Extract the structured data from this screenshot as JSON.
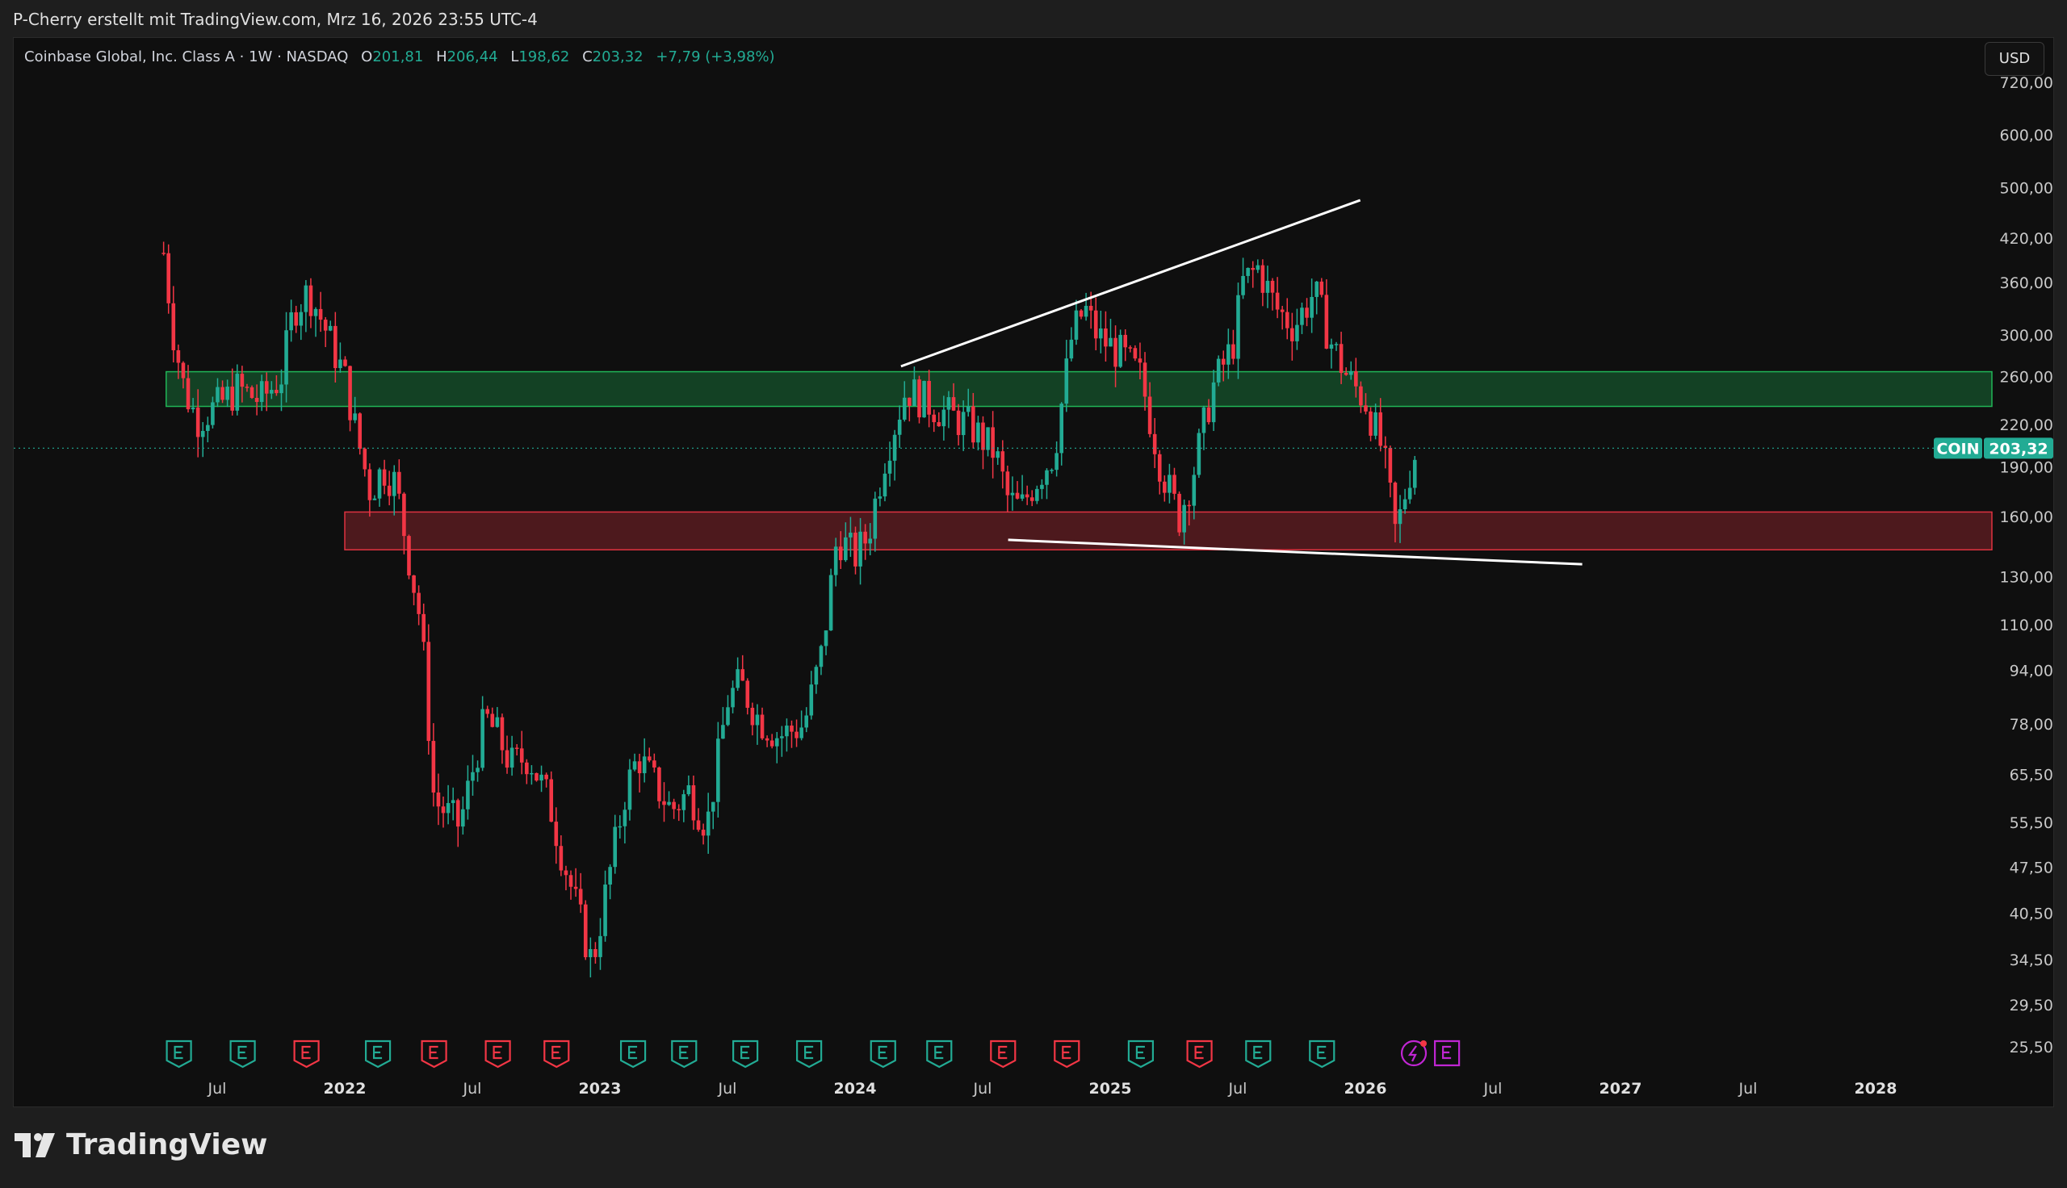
{
  "caption": "P-Cherry erstellt mit TradingView.com, Mrz 16, 2026 23:55 UTC-4",
  "symbol": {
    "title": "Coinbase Global, Inc. Class A · 1W · NASDAQ",
    "open_label": "O",
    "open": "201,81",
    "high_label": "H",
    "high": "206,44",
    "low_label": "L",
    "low": "198,62",
    "close_label": "C",
    "close": "203,32",
    "change": "+7,79 (+3,98%)",
    "ticker": "COIN",
    "last_price": "203,32"
  },
  "currency": "USD",
  "brand": "TradingView",
  "colors": {
    "up": "#22ab94",
    "down": "#f23645",
    "background": "#0f0f0f",
    "zone_green": "#1b5e20",
    "zone_red": "#5c0f14",
    "trendline": "#ffffff"
  },
  "chart_data": {
    "type": "candlestick",
    "scale": "log",
    "ylim": [
      25.5,
      720
    ],
    "y_ticks": [
      {
        "v": 720,
        "label": "720,00"
      },
      {
        "v": 600,
        "label": "600,00"
      },
      {
        "v": 500,
        "label": "500,00"
      },
      {
        "v": 420,
        "label": "420,00"
      },
      {
        "v": 360,
        "label": "360,00"
      },
      {
        "v": 300,
        "label": "300,00"
      },
      {
        "v": 260,
        "label": "260,00"
      },
      {
        "v": 220,
        "label": "220,00"
      },
      {
        "v": 190,
        "label": "190,00"
      },
      {
        "v": 160,
        "label": "160,00"
      },
      {
        "v": 130,
        "label": "130,00"
      },
      {
        "v": 110,
        "label": "110,00"
      },
      {
        "v": 94,
        "label": "94,00"
      },
      {
        "v": 78,
        "label": "78,00"
      },
      {
        "v": 65.5,
        "label": "65,50"
      },
      {
        "v": 55.5,
        "label": "55,50"
      },
      {
        "v": 47.5,
        "label": "47,50"
      },
      {
        "v": 40.5,
        "label": "40,50"
      },
      {
        "v": 34.5,
        "label": "34,50"
      },
      {
        "v": 29.5,
        "label": "29,50"
      },
      {
        "v": 25.5,
        "label": "25,50"
      }
    ],
    "x_ticks": [
      {
        "t": 2021.5,
        "label": "Jul",
        "year": false
      },
      {
        "t": 2022.0,
        "label": "2022",
        "year": true
      },
      {
        "t": 2022.5,
        "label": "Jul",
        "year": false
      },
      {
        "t": 2023.0,
        "label": "2023",
        "year": true
      },
      {
        "t": 2023.5,
        "label": "Jul",
        "year": false
      },
      {
        "t": 2024.0,
        "label": "2024",
        "year": true
      },
      {
        "t": 2024.5,
        "label": "Jul",
        "year": false
      },
      {
        "t": 2025.0,
        "label": "2025",
        "year": true
      },
      {
        "t": 2025.5,
        "label": "Jul",
        "year": false
      },
      {
        "t": 2026.0,
        "label": "2026",
        "year": true
      },
      {
        "t": 2026.5,
        "label": "Jul",
        "year": false
      },
      {
        "t": 2027.0,
        "label": "2027",
        "year": true
      },
      {
        "t": 2027.5,
        "label": "Jul",
        "year": false
      },
      {
        "t": 2028.0,
        "label": "2028",
        "year": true
      }
    ],
    "price_path": [
      [
        2021.29,
        400
      ],
      [
        2021.33,
        300
      ],
      [
        2021.37,
        250
      ],
      [
        2021.42,
        225
      ],
      [
        2021.5,
        235
      ],
      [
        2021.58,
        250
      ],
      [
        2021.67,
        240
      ],
      [
        2021.75,
        260
      ],
      [
        2021.8,
        330
      ],
      [
        2021.86,
        350
      ],
      [
        2021.92,
        310
      ],
      [
        2022.0,
        260
      ],
      [
        2022.05,
        210
      ],
      [
        2022.1,
        175
      ],
      [
        2022.15,
        190
      ],
      [
        2022.2,
        180
      ],
      [
        2022.25,
        140
      ],
      [
        2022.3,
        110
      ],
      [
        2022.35,
        60
      ],
      [
        2022.45,
        55
      ],
      [
        2022.55,
        80
      ],
      [
        2022.6,
        75
      ],
      [
        2022.65,
        68
      ],
      [
        2022.72,
        70
      ],
      [
        2022.8,
        60
      ],
      [
        2022.85,
        50
      ],
      [
        2022.92,
        40
      ],
      [
        2022.97,
        34
      ],
      [
        2023.03,
        45
      ],
      [
        2023.1,
        62
      ],
      [
        2023.15,
        70
      ],
      [
        2023.2,
        65
      ],
      [
        2023.28,
        58
      ],
      [
        2023.35,
        62
      ],
      [
        2023.42,
        55
      ],
      [
        2023.5,
        85
      ],
      [
        2023.55,
        90
      ],
      [
        2023.62,
        80
      ],
      [
        2023.7,
        75
      ],
      [
        2023.8,
        78
      ],
      [
        2023.87,
        100
      ],
      [
        2023.93,
        150
      ],
      [
        2024.0,
        140
      ],
      [
        2024.05,
        150
      ],
      [
        2024.12,
        200
      ],
      [
        2024.2,
        250
      ],
      [
        2024.27,
        240
      ],
      [
        2024.35,
        230
      ],
      [
        2024.45,
        220
      ],
      [
        2024.55,
        200
      ],
      [
        2024.6,
        170
      ],
      [
        2024.65,
        165
      ],
      [
        2024.7,
        180
      ],
      [
        2024.78,
        200
      ],
      [
        2024.85,
        300
      ],
      [
        2024.9,
        330
      ],
      [
        2024.95,
        300
      ],
      [
        2025.05,
        280
      ],
      [
        2025.12,
        260
      ],
      [
        2025.2,
        190
      ],
      [
        2025.27,
        160
      ],
      [
        2025.33,
        190
      ],
      [
        2025.4,
        250
      ],
      [
        2025.48,
        290
      ],
      [
        2025.52,
        360
      ],
      [
        2025.58,
        380
      ],
      [
        2025.65,
        330
      ],
      [
        2025.72,
        310
      ],
      [
        2025.8,
        350
      ],
      [
        2025.87,
        290
      ],
      [
        2025.93,
        260
      ],
      [
        2026.0,
        240
      ],
      [
        2026.07,
        200
      ],
      [
        2026.12,
        150
      ],
      [
        2026.17,
        185
      ],
      [
        2026.2,
        203.32
      ]
    ],
    "zones": [
      {
        "name": "support-resistance-green",
        "t0": 2021.3,
        "t1": 2028.5,
        "low": 235,
        "high": 265,
        "color": "#22c55e"
      },
      {
        "name": "demand-zone-red",
        "t0": 2022.0,
        "t1": 2028.5,
        "low": 143,
        "high": 163,
        "color": "#f23645"
      }
    ],
    "trendlines": [
      {
        "name": "upper-trendline",
        "t0": 2024.18,
        "p0": 270,
        "t1": 2025.98,
        "p1": 480
      },
      {
        "name": "lower-trendline",
        "t0": 2024.6,
        "p0": 148,
        "t1": 2026.85,
        "p1": 136
      }
    ],
    "last_price": 203.32,
    "earnings_markers": [
      {
        "t": 2021.35,
        "type": "up"
      },
      {
        "t": 2021.6,
        "type": "up"
      },
      {
        "t": 2021.85,
        "type": "down"
      },
      {
        "t": 2022.13,
        "type": "up"
      },
      {
        "t": 2022.35,
        "type": "down"
      },
      {
        "t": 2022.6,
        "type": "down"
      },
      {
        "t": 2022.83,
        "type": "down"
      },
      {
        "t": 2023.13,
        "type": "up"
      },
      {
        "t": 2023.33,
        "type": "up"
      },
      {
        "t": 2023.57,
        "type": "up"
      },
      {
        "t": 2023.82,
        "type": "up"
      },
      {
        "t": 2024.11,
        "type": "up"
      },
      {
        "t": 2024.33,
        "type": "up"
      },
      {
        "t": 2024.58,
        "type": "down"
      },
      {
        "t": 2024.83,
        "type": "down"
      },
      {
        "t": 2025.12,
        "type": "up"
      },
      {
        "t": 2025.35,
        "type": "down"
      },
      {
        "t": 2025.58,
        "type": "up"
      },
      {
        "t": 2025.83,
        "type": "up"
      }
    ],
    "upcoming_markers": [
      {
        "t": 2026.19,
        "type": "dividend-split"
      },
      {
        "t": 2026.32,
        "type": "earnings-upcoming"
      }
    ]
  }
}
